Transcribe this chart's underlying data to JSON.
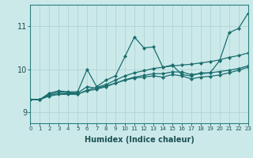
{
  "xlabel": "Humidex (Indice chaleur)",
  "bg_color": "#cce9ea",
  "grid_color": "#aed4d6",
  "line_color": "#1a6e6e",
  "x_ticks": [
    0,
    1,
    2,
    3,
    4,
    5,
    6,
    7,
    8,
    9,
    10,
    11,
    12,
    13,
    14,
    15,
    16,
    17,
    18,
    19,
    20,
    21,
    22,
    23
  ],
  "y_ticks": [
    9,
    10,
    11
  ],
  "ylim": [
    8.75,
    11.5
  ],
  "xlim": [
    0,
    23
  ],
  "series": [
    {
      "x": [
        0,
        1,
        2,
        3,
        4,
        5,
        6,
        7,
        8,
        9,
        10,
        11,
        12,
        13,
        14,
        15,
        16,
        17,
        18,
        19,
        20,
        21,
        22,
        23
      ],
      "y": [
        9.3,
        9.3,
        9.45,
        9.5,
        9.48,
        9.48,
        10.0,
        9.6,
        9.75,
        9.85,
        10.3,
        10.75,
        10.5,
        10.52,
        10.05,
        10.1,
        9.88,
        9.85,
        9.92,
        9.92,
        10.2,
        10.85,
        10.95,
        11.3
      ]
    },
    {
      "x": [
        0,
        1,
        2,
        3,
        4,
        5,
        6,
        7,
        8,
        9,
        10,
        11,
        12,
        13,
        14,
        15,
        16,
        17,
        18,
        19,
        20,
        21,
        22,
        23
      ],
      "y": [
        9.3,
        9.3,
        9.38,
        9.42,
        9.42,
        9.42,
        9.52,
        9.58,
        9.65,
        9.75,
        9.85,
        9.92,
        9.97,
        10.02,
        10.05,
        10.08,
        10.1,
        10.12,
        10.15,
        10.18,
        10.22,
        10.28,
        10.32,
        10.38
      ]
    },
    {
      "x": [
        0,
        1,
        2,
        3,
        4,
        5,
        6,
        7,
        8,
        9,
        10,
        11,
        12,
        13,
        14,
        15,
        16,
        17,
        18,
        19,
        20,
        21,
        22,
        23
      ],
      "y": [
        9.3,
        9.3,
        9.42,
        9.48,
        9.46,
        9.45,
        9.6,
        9.56,
        9.62,
        9.68,
        9.75,
        9.8,
        9.82,
        9.85,
        9.82,
        9.88,
        9.85,
        9.78,
        9.82,
        9.84,
        9.87,
        9.92,
        9.98,
        10.05
      ]
    },
    {
      "x": [
        0,
        1,
        2,
        3,
        4,
        5,
        6,
        7,
        8,
        9,
        10,
        11,
        12,
        13,
        14,
        15,
        16,
        17,
        18,
        19,
        20,
        21,
        22,
        23
      ],
      "y": [
        9.3,
        9.3,
        9.4,
        9.44,
        9.44,
        9.43,
        9.5,
        9.54,
        9.6,
        9.68,
        9.76,
        9.82,
        9.86,
        9.9,
        9.9,
        9.94,
        9.94,
        9.88,
        9.9,
        9.92,
        9.95,
        9.98,
        10.02,
        10.08
      ]
    }
  ]
}
